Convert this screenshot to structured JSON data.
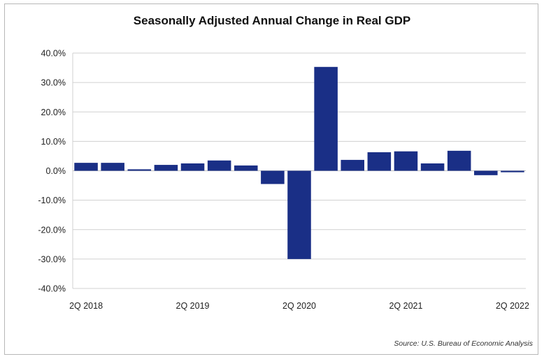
{
  "chart_data": {
    "type": "bar",
    "title": "Seasonally Adjusted Annual Change in Real GDP",
    "source": "Source: U.S. Bureau of Economic Analysis",
    "xlabel": "",
    "ylabel": "",
    "ylim": [
      -40,
      40
    ],
    "y_ticks": [
      "40.0%",
      "30.0%",
      "20.0%",
      "10.0%",
      "0.0%",
      "-10.0%",
      "-20.0%",
      "-30.0%",
      "-40.0%"
    ],
    "y_tick_values": [
      40,
      30,
      20,
      10,
      0,
      -10,
      -20,
      -30,
      -40
    ],
    "x_tick_labels": [
      "2Q 2018",
      "2Q 2019",
      "2Q 2020",
      "2Q 2021",
      "2Q 2022"
    ],
    "x_tick_positions": [
      0,
      4,
      8,
      12,
      16
    ],
    "grid": true,
    "legend": "none",
    "bar_color": "#1a2f86",
    "values": [
      2.7,
      2.7,
      0.5,
      2.0,
      2.5,
      3.5,
      1.8,
      -4.5,
      -30.0,
      35.3,
      3.7,
      6.3,
      6.6,
      2.5,
      6.8,
      -1.5,
      -0.5
    ]
  }
}
